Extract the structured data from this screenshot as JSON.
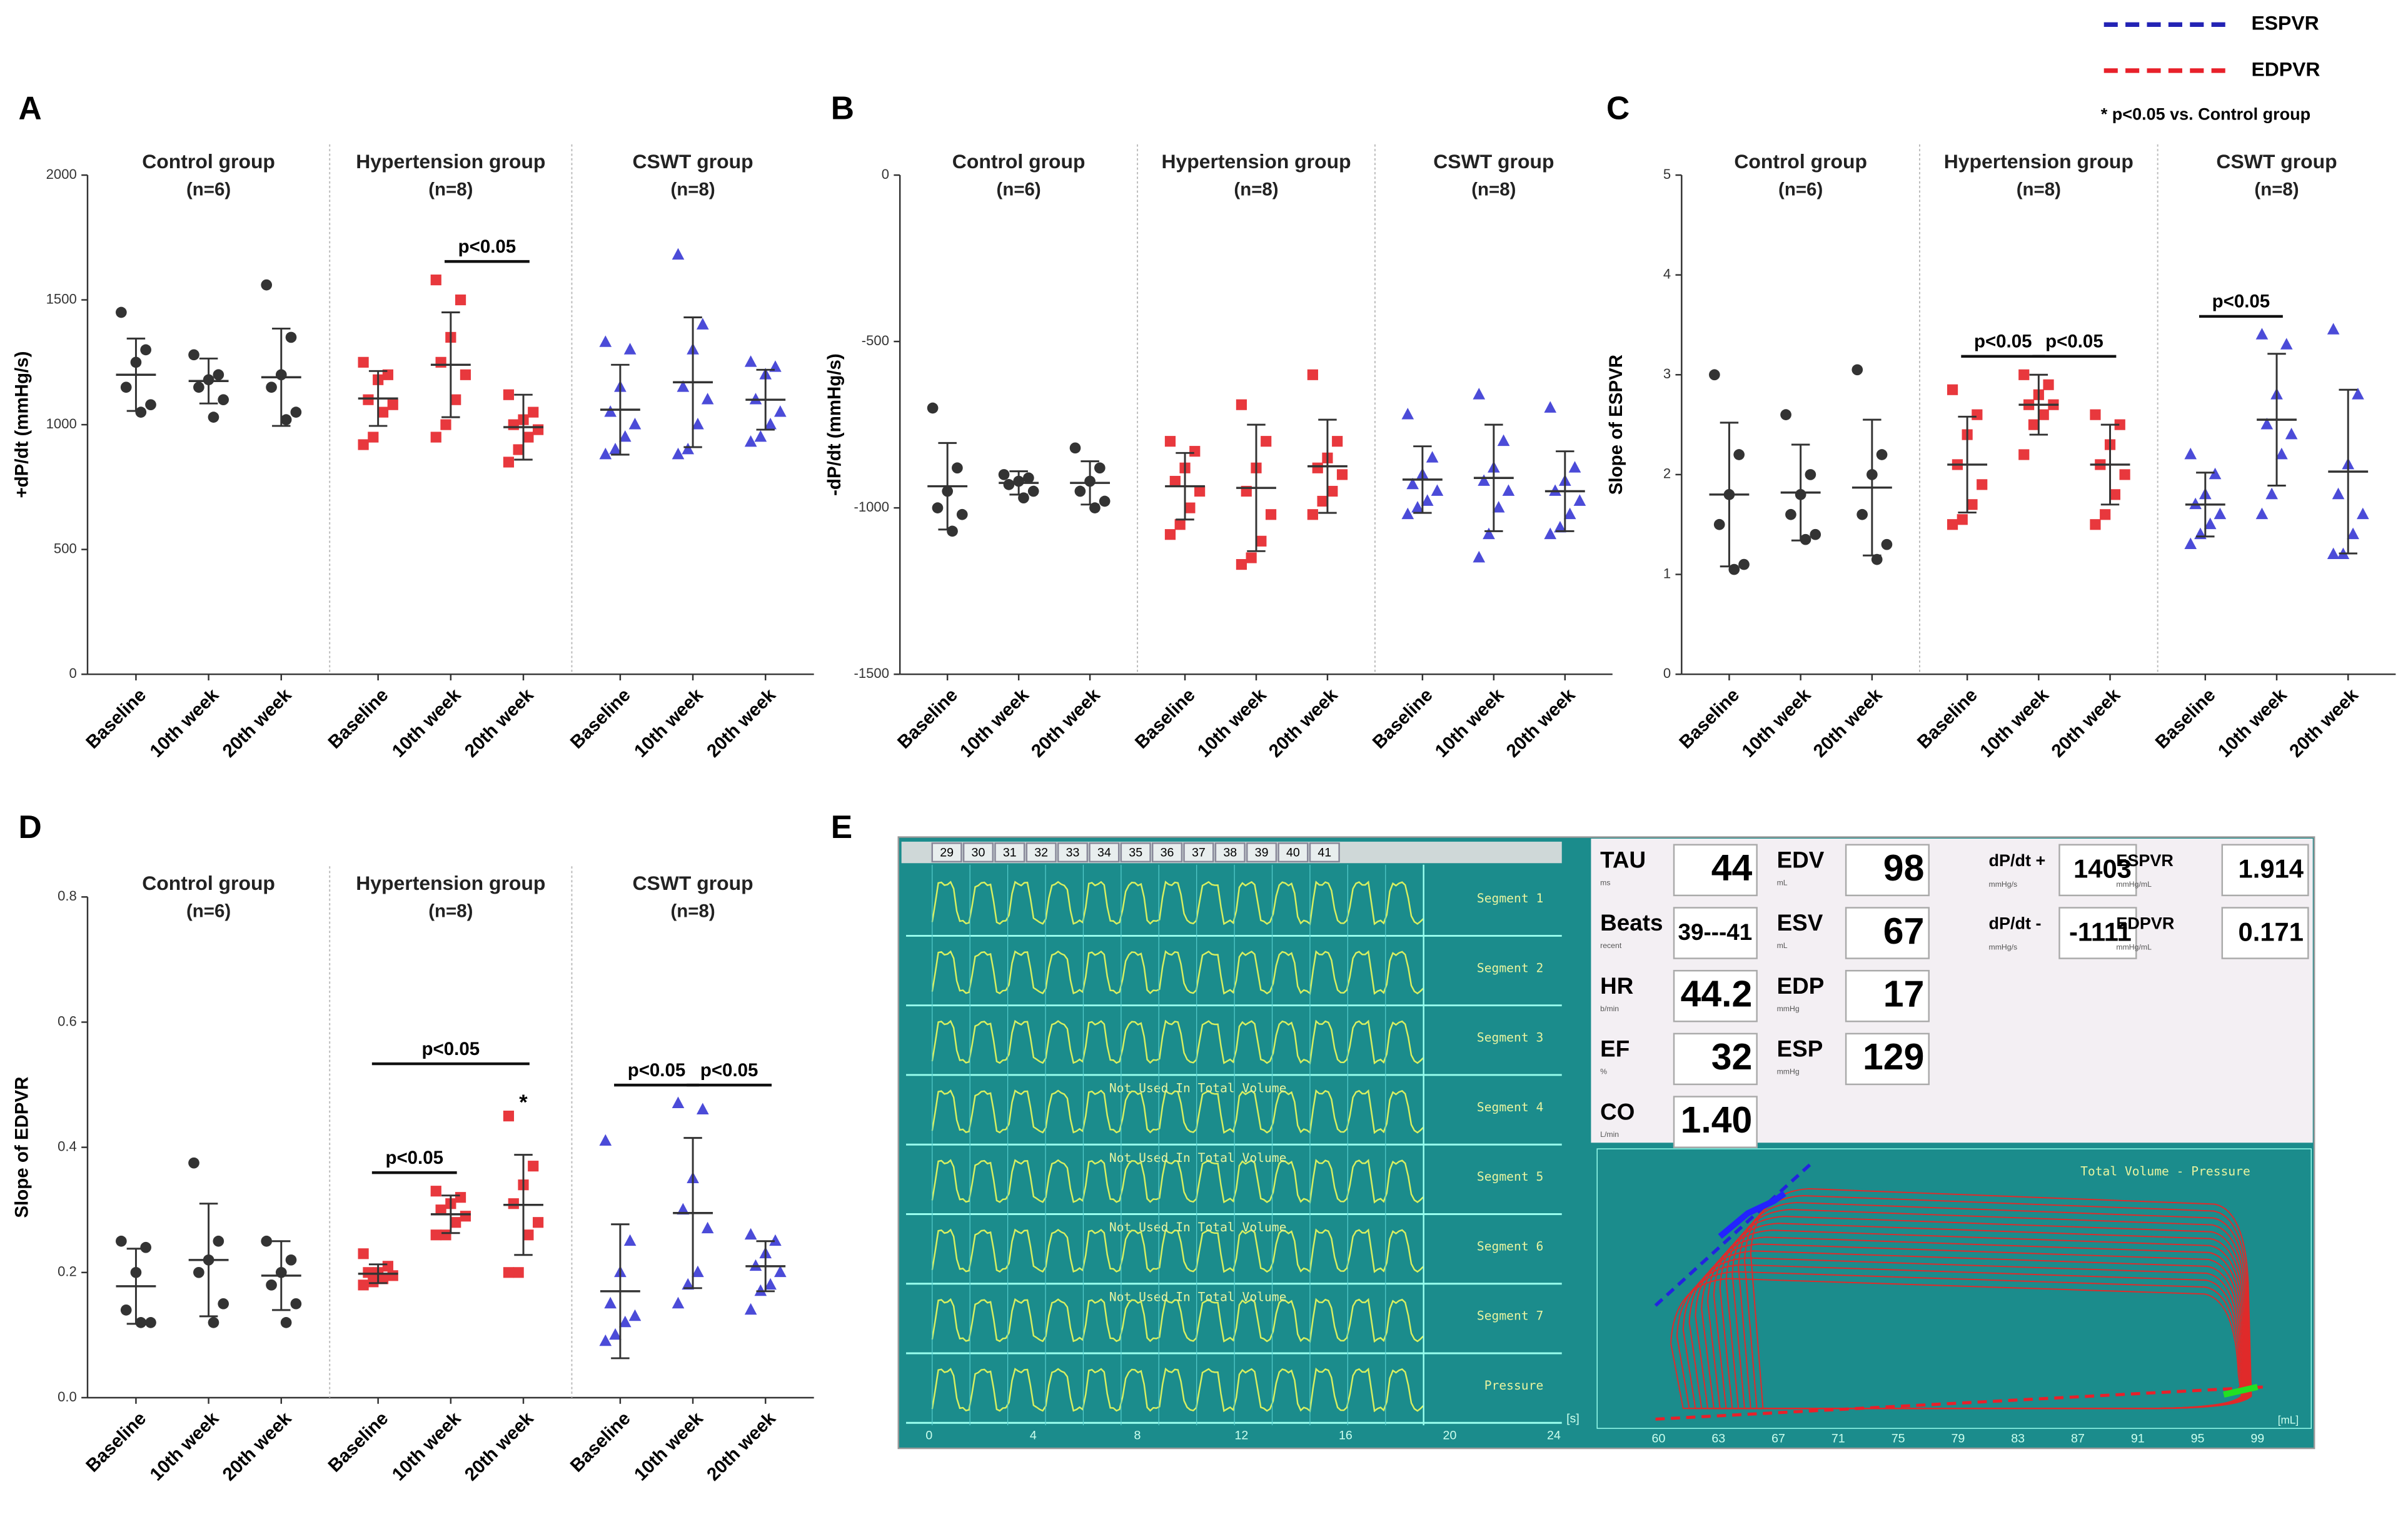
{
  "chart_data": [
    {
      "type": "dot",
      "label": "A",
      "ylabel": "+dP/dt (mmHg/s)",
      "ylim": [
        0,
        2000
      ],
      "yticks": [
        0,
        500,
        1000,
        1500,
        2000
      ],
      "groups": [
        {
          "title": "Control group",
          "n": "(n=6)",
          "color": "#333333",
          "marker": "circle",
          "categories": [
            "Baseline",
            "10th week",
            "20th week"
          ],
          "points": [
            [
              1450,
              1300,
              1250,
              1150,
              1080,
              1050
            ],
            [
              1280,
              1200,
              1180,
              1150,
              1100,
              1030
            ],
            [
              1560,
              1350,
              1200,
              1150,
              1050,
              1020
            ]
          ],
          "mean": [
            1200,
            1175,
            1190
          ],
          "sd": [
            145,
            90,
            195
          ]
        },
        {
          "title": "Hypertension group",
          "n": "(n=8)",
          "color": "#e8383d",
          "marker": "square",
          "categories": [
            "Baseline",
            "10th week",
            "20th week"
          ],
          "points": [
            [
              1250,
              1200,
              1180,
              1100,
              1080,
              1050,
              950,
              920
            ],
            [
              1580,
              1500,
              1350,
              1250,
              1200,
              1100,
              1000,
              950
            ],
            [
              1120,
              1050,
              1020,
              1000,
              980,
              950,
              900,
              850
            ]
          ],
          "mean": [
            1105,
            1240,
            990
          ],
          "sd": [
            110,
            210,
            130
          ]
        },
        {
          "title": "CSWT group",
          "n": "(n=8)",
          "color": "#4b4bd8",
          "marker": "triangle",
          "categories": [
            "Baseline",
            "10th week",
            "20th week"
          ],
          "points": [
            [
              1330,
              1300,
              1150,
              1050,
              1000,
              950,
              900,
              880
            ],
            [
              1680,
              1400,
              1300,
              1150,
              1100,
              1000,
              900,
              880
            ],
            [
              1250,
              1230,
              1200,
              1100,
              1050,
              1000,
              950,
              930
            ]
          ],
          "mean": [
            1060,
            1170,
            1100
          ],
          "sd": [
            180,
            260,
            120
          ]
        }
      ],
      "annotations": [
        {
          "text": "p<0.05",
          "group": 1,
          "from": 1,
          "to": 2
        }
      ]
    },
    {
      "type": "dot",
      "label": "B",
      "ylabel": "-dP/dt (mmHg/s)",
      "ylim": [
        -1500,
        0
      ],
      "yticks": [
        -1500,
        -1000,
        -500,
        0
      ],
      "groups": [
        {
          "title": "Control group",
          "n": "(n=6)",
          "color": "#333333",
          "marker": "circle",
          "categories": [
            "Baseline",
            "10th week",
            "20th week"
          ],
          "points": [
            [
              -700,
              -880,
              -950,
              -1000,
              -1020,
              -1070
            ],
            [
              -900,
              -910,
              -920,
              -930,
              -950,
              -970
            ],
            [
              -820,
              -880,
              -920,
              -950,
              -980,
              -1000
            ]
          ],
          "mean": [
            -935,
            -925,
            -925
          ],
          "sd": [
            130,
            35,
            65
          ]
        },
        {
          "title": "Hypertension group",
          "n": "(n=8)",
          "color": "#e8383d",
          "marker": "square",
          "categories": [
            "Baseline",
            "10th week",
            "20th week"
          ],
          "points": [
            [
              -800,
              -830,
              -880,
              -920,
              -950,
              -1000,
              -1050,
              -1080
            ],
            [
              -690,
              -800,
              -880,
              -950,
              -1020,
              -1100,
              -1150,
              -1170
            ],
            [
              -600,
              -800,
              -850,
              -880,
              -900,
              -950,
              -980,
              -1020
            ]
          ],
          "mean": [
            -935,
            -940,
            -875
          ],
          "sd": [
            100,
            190,
            140
          ]
        },
        {
          "title": "CSWT group",
          "n": "(n=8)",
          "color": "#4b4bd8",
          "marker": "triangle",
          "categories": [
            "Baseline",
            "10th week",
            "20th week"
          ],
          "points": [
            [
              -720,
              -850,
              -900,
              -930,
              -950,
              -980,
              -1000,
              -1020
            ],
            [
              -660,
              -800,
              -880,
              -920,
              -950,
              -1000,
              -1080,
              -1150
            ],
            [
              -700,
              -880,
              -920,
              -950,
              -980,
              -1020,
              -1060,
              -1080
            ]
          ],
          "mean": [
            -915,
            -910,
            -950
          ],
          "sd": [
            100,
            160,
            120
          ]
        }
      ],
      "annotations": []
    },
    {
      "type": "dot",
      "label": "C",
      "ylabel": "Slope of ESPVR",
      "ylim": [
        0,
        5
      ],
      "yticks": [
        0,
        1,
        2,
        3,
        4,
        5
      ],
      "groups": [
        {
          "title": "Control group",
          "n": "(n=6)",
          "color": "#333333",
          "marker": "circle",
          "categories": [
            "Baseline",
            "10th week",
            "20th week"
          ],
          "points": [
            [
              3.0,
              2.2,
              1.8,
              1.5,
              1.1,
              1.05
            ],
            [
              2.6,
              2.0,
              1.8,
              1.6,
              1.4,
              1.35
            ],
            [
              3.05,
              2.2,
              2.0,
              1.6,
              1.3,
              1.15
            ]
          ],
          "mean": [
            1.8,
            1.82,
            1.87
          ],
          "sd": [
            0.72,
            0.48,
            0.68
          ]
        },
        {
          "title": "Hypertension group",
          "n": "(n=8)",
          "color": "#e8383d",
          "marker": "square",
          "categories": [
            "Baseline",
            "10th week",
            "20th week"
          ],
          "points": [
            [
              2.85,
              2.6,
              2.4,
              2.1,
              1.9,
              1.7,
              1.55,
              1.5
            ],
            [
              3.0,
              2.9,
              2.8,
              2.7,
              2.7,
              2.6,
              2.5,
              2.2
            ],
            [
              2.6,
              2.5,
              2.3,
              2.1,
              2.0,
              1.8,
              1.6,
              1.5
            ]
          ],
          "mean": [
            2.1,
            2.7,
            2.1
          ],
          "sd": [
            0.48,
            0.3,
            0.4
          ]
        },
        {
          "title": "CSWT group",
          "n": "(n=8)",
          "color": "#4b4bd8",
          "marker": "triangle",
          "categories": [
            "Baseline",
            "10th week",
            "20th week"
          ],
          "points": [
            [
              2.2,
              2.0,
              1.8,
              1.7,
              1.6,
              1.5,
              1.4,
              1.3
            ],
            [
              3.4,
              3.3,
              2.8,
              2.5,
              2.4,
              2.2,
              1.8,
              1.6
            ],
            [
              3.45,
              2.8,
              2.1,
              1.8,
              1.6,
              1.4,
              1.2,
              1.2
            ]
          ],
          "mean": [
            1.7,
            2.55,
            2.03
          ],
          "sd": [
            0.32,
            0.66,
            0.82
          ]
        }
      ],
      "annotations": [
        {
          "text": "p<0.05",
          "group": 1,
          "from": 0,
          "to": 1
        },
        {
          "text": "p<0.05",
          "group": 1,
          "from": 1,
          "to": 2
        },
        {
          "text": "p<0.05",
          "group": 2,
          "from": 0,
          "to": 1
        }
      ]
    },
    {
      "type": "dot",
      "label": "D",
      "ylabel": "Slope of EDPVR",
      "ylim": [
        0,
        0.8
      ],
      "yticks": [
        {
          "value": 0,
          "label": "0.0"
        },
        0.2,
        0.4,
        0.6,
        0.8
      ],
      "groups": [
        {
          "title": "Control group",
          "n": "(n=6)",
          "color": "#333333",
          "marker": "circle",
          "categories": [
            "Baseline",
            "10th week",
            "20th week"
          ],
          "points": [
            [
              0.25,
              0.24,
              0.2,
              0.14,
              0.12,
              0.12
            ],
            [
              0.375,
              0.25,
              0.22,
              0.2,
              0.15,
              0.12
            ],
            [
              0.25,
              0.22,
              0.2,
              0.18,
              0.15,
              0.12
            ]
          ],
          "mean": [
            0.178,
            0.22,
            0.195
          ],
          "sd": [
            0.06,
            0.09,
            0.055
          ]
        },
        {
          "title": "Hypertension group",
          "n": "(n=8)",
          "color": "#e8383d",
          "marker": "square",
          "categories": [
            "Baseline",
            "10th week",
            "20th week"
          ],
          "points": [
            [
              0.23,
              0.21,
              0.2,
              0.2,
              0.195,
              0.19,
              0.185,
              0.18
            ],
            [
              0.33,
              0.32,
              0.31,
              0.3,
              0.29,
              0.28,
              0.26,
              0.26
            ],
            [
              0.45,
              0.37,
              0.34,
              0.31,
              0.28,
              0.26,
              0.2,
              0.2
            ]
          ],
          "mean": [
            0.198,
            0.293,
            0.308
          ],
          "sd": [
            0.015,
            0.03,
            0.08
          ]
        },
        {
          "title": "CSWT group",
          "n": "(n=8)",
          "color": "#4b4bd8",
          "marker": "triangle",
          "categories": [
            "Baseline",
            "10th week",
            "20th week"
          ],
          "points": [
            [
              0.41,
              0.25,
              0.2,
              0.15,
              0.13,
              0.12,
              0.1,
              0.09
            ],
            [
              0.47,
              0.46,
              0.35,
              0.3,
              0.27,
              0.2,
              0.18,
              0.15
            ],
            [
              0.26,
              0.25,
              0.23,
              0.21,
              0.2,
              0.18,
              0.17,
              0.14
            ]
          ],
          "mean": [
            0.17,
            0.295,
            0.21
          ],
          "sd": [
            0.107,
            0.12,
            0.04
          ]
        }
      ],
      "annotations": [
        {
          "text": "p<0.05",
          "group": 1,
          "from": 0,
          "to": 1
        },
        {
          "text": "p<0.05",
          "group": 1,
          "from": 0,
          "to": 2
        },
        {
          "text": "p<0.05",
          "group": 2,
          "from": 0,
          "to": 1
        },
        {
          "text": "p<0.05",
          "group": 2,
          "from": 1,
          "to": 2
        }
      ],
      "stars": [
        {
          "text": "*",
          "group": 1,
          "at": 2
        }
      ]
    }
  ],
  "legend": {
    "items": [
      {
        "name": "ESPVR",
        "color": "#2323b4"
      },
      {
        "name": "EDPVR",
        "color": "#e8202a"
      }
    ],
    "note": "* p<0.05 vs. Control group"
  },
  "panel_e": {
    "label": "E",
    "beats": [
      29,
      30,
      31,
      32,
      33,
      34,
      35,
      36,
      37,
      38,
      39,
      40,
      41
    ],
    "segments": [
      "Segment 1",
      "Segment 2",
      "Segment 3",
      "Segment 4",
      "Segment 5",
      "Segment 6",
      "Segment 7",
      "Pressure"
    ],
    "overlay": "Not Used In Total Volume",
    "time_ticks": [
      0,
      4,
      8,
      12,
      16,
      20,
      24
    ],
    "time_unit": "[s]",
    "readouts": [
      [
        {
          "name": "TAU",
          "unit": "ms",
          "value": "44"
        },
        {
          "name": "Beats",
          "unit": "recent",
          "value": "39---41"
        },
        {
          "name": "HR",
          "unit": "b/min",
          "value": "44.2"
        },
        {
          "name": "EF",
          "unit": "%",
          "value": "32"
        },
        {
          "name": "CO",
          "unit": "L/min",
          "value": "1.40"
        }
      ],
      [
        {
          "name": "EDV",
          "unit": "mL",
          "value": "98"
        },
        {
          "name": "ESV",
          "unit": "mL",
          "value": "67"
        },
        {
          "name": "EDP",
          "unit": "mmHg",
          "value": "17"
        },
        {
          "name": "ESP",
          "unit": "mmHg",
          "value": "129"
        }
      ],
      [
        {
          "name": "dP/dt +",
          "unit": "mmHg/s",
          "value": "1403"
        },
        {
          "name": "dP/dt -",
          "unit": "mmHg/s",
          "value": "-1111"
        }
      ],
      [
        {
          "name": "ESPVR",
          "unit": "mmHg/mL",
          "value": "1.914"
        },
        {
          "name": "EDPVR",
          "unit": "mmHg/mL",
          "value": "0.171"
        }
      ]
    ],
    "loop_title": "Total Volume - Pressure",
    "loop_xticks": [
      60,
      63,
      67,
      71,
      75,
      79,
      83,
      87,
      91,
      95,
      99
    ],
    "loop_xunit": "[mL]"
  }
}
